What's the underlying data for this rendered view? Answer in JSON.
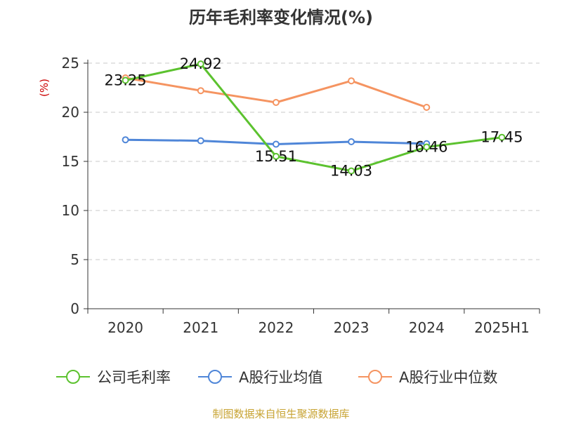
{
  "chart_data": {
    "type": "line",
    "title": "历年毛利率变化情况(%)",
    "xlabel": "",
    "ylabel": "(%)",
    "categories": [
      "2020",
      "2021",
      "2022",
      "2023",
      "2024",
      "2025H1"
    ],
    "ylim": [
      0,
      25
    ],
    "yticks": [
      0,
      5,
      10,
      15,
      20,
      25
    ],
    "grid": true,
    "legend_position": "bottom",
    "series": [
      {
        "name": "公司毛利率",
        "color": "#5cc22f",
        "values": [
          23.25,
          24.92,
          15.51,
          14.03,
          16.46,
          17.45
        ],
        "labels": [
          "23.25",
          "24.92",
          "15.51",
          "14.03",
          "16.46",
          "17.45"
        ]
      },
      {
        "name": "A股行业均值",
        "color": "#4f86d8",
        "values": [
          17.2,
          17.1,
          16.75,
          17.0,
          16.8,
          null
        ]
      },
      {
        "name": "A股行业中位数",
        "color": "#f59461",
        "values": [
          23.5,
          22.2,
          21.0,
          23.2,
          20.5,
          null
        ]
      }
    ]
  },
  "ylabel_color": "#cc0000",
  "source": {
    "text": "制图数据来自恒生聚源数据库",
    "color": "#c8a434"
  }
}
